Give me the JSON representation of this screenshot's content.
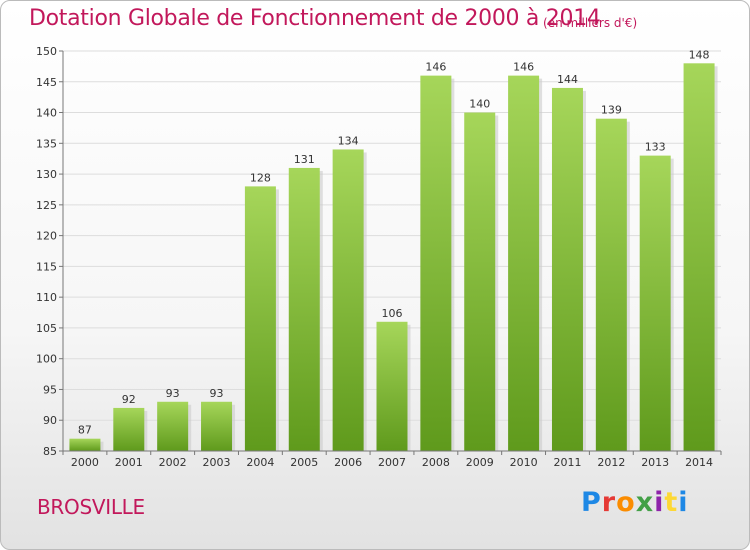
{
  "title": "Dotation Globale de Fonctionnement de 2000 à 2014",
  "subtitle": "(en milliers d'€)",
  "commune": "BROSVILLE",
  "logo": {
    "text": "Proxiti",
    "letters": [
      "P",
      "r",
      "o",
      "x",
      "i",
      "t",
      "i"
    ]
  },
  "colors": {
    "title": "#c2185b",
    "bar_light": "#a6d65a",
    "bar_dark": "#5f9a1c",
    "grid": "#dddddd"
  },
  "chart_data": {
    "type": "bar",
    "categories": [
      "2000",
      "2001",
      "2002",
      "2003",
      "2004",
      "2005",
      "2006",
      "2007",
      "2008",
      "2009",
      "2010",
      "2011",
      "2012",
      "2013",
      "2014"
    ],
    "values": [
      87,
      92,
      93,
      93,
      128,
      131,
      134,
      106,
      146,
      140,
      146,
      144,
      139,
      133,
      148
    ],
    "ylim": [
      85,
      150
    ],
    "yticks": [
      85,
      90,
      95,
      100,
      105,
      110,
      115,
      120,
      125,
      130,
      135,
      140,
      145,
      150
    ],
    "title": "Dotation Globale de Fonctionnement de 2000 à 2014",
    "xlabel": "",
    "ylabel": "",
    "grid": true
  }
}
